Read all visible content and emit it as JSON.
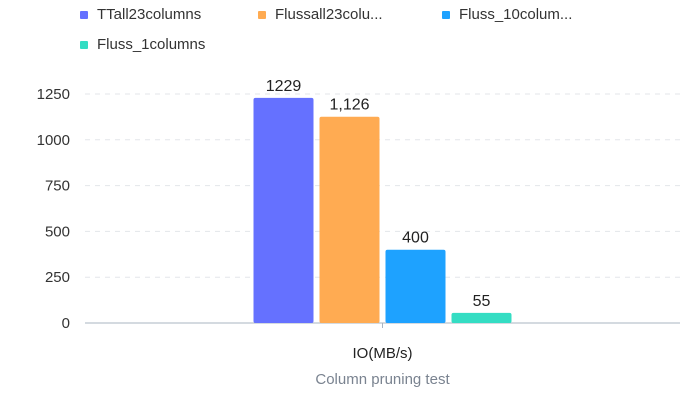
{
  "chart_data": {
    "type": "bar",
    "categories": [
      "IO(MB/s)"
    ],
    "series": [
      {
        "name": "TTall23columns",
        "legend_label": "TTall23columns",
        "values": [
          1229
        ],
        "data_label": "1229",
        "color": "#6571FF"
      },
      {
        "name": "Flussall23columns",
        "legend_label": "Flussall23colu...",
        "values": [
          1126
        ],
        "data_label": "1,126",
        "color": "#FFAB52"
      },
      {
        "name": "Fluss_10columns",
        "legend_label": "Fluss_10colum...",
        "values": [
          400
        ],
        "data_label": "400",
        "color": "#1EA2FF"
      },
      {
        "name": "Fluss_1columns",
        "legend_label": "Fluss_1columns",
        "values": [
          55
        ],
        "data_label": "55",
        "color": "#34DDC3"
      }
    ],
    "xlabel": "Column pruning test",
    "ylabel": "",
    "ylim": [
      0,
      1250
    ],
    "yticks": [
      "0",
      "250",
      "500",
      "750",
      "1000",
      "1250"
    ],
    "grid": true,
    "legend_position": "top"
  }
}
